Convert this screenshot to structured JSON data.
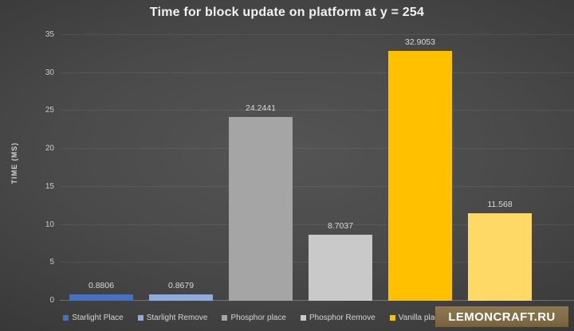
{
  "header": {
    "title": "Time for block update on platform at y = 254"
  },
  "watermark": {
    "text": "LEMONCRAFT.RU",
    "bg_color": "#81ric6c46",
    "text_color": "#ffffff"
  },
  "chart_data": {
    "type": "bar",
    "title": "Time for block update on platform at y = 254",
    "xlabel": "",
    "ylabel": "TIME (MS)",
    "ylim": [
      0,
      35
    ],
    "yticks": [
      0,
      5,
      10,
      15,
      20,
      25,
      30,
      35
    ],
    "grid": "horizontal gridlines on, dark background",
    "legend_position": "bottom",
    "categories": [
      "Starlight Place",
      "Starlight Remove",
      "Phosphor place",
      "Phosphor Remove",
      "Vanilla place",
      ""
    ],
    "values": [
      0.8806,
      0.8679,
      24.2441,
      8.7037,
      32.9053,
      11.568
    ],
    "data_labels": [
      "0.8806",
      "0.8679",
      "24.2441",
      "8.7037",
      "32.9053",
      "11.568"
    ],
    "colors": [
      "#4472C4",
      "#8FAADC",
      "#A5A5A5",
      "#C9C9C9",
      "#FFC000",
      "#FFD966"
    ],
    "legend": [
      {
        "label": "Starlight Place",
        "color": "#4472C4"
      },
      {
        "label": "Starlight Remove",
        "color": "#8FAADC"
      },
      {
        "label": "Phosphor place",
        "color": "#A5A5A5"
      },
      {
        "label": "Phosphor Remove",
        "color": "#C9C9C9"
      },
      {
        "label": "Vanilla place",
        "color": "#FFC000"
      },
      {
        "label": "",
        "color": "#FFD966"
      }
    ]
  }
}
